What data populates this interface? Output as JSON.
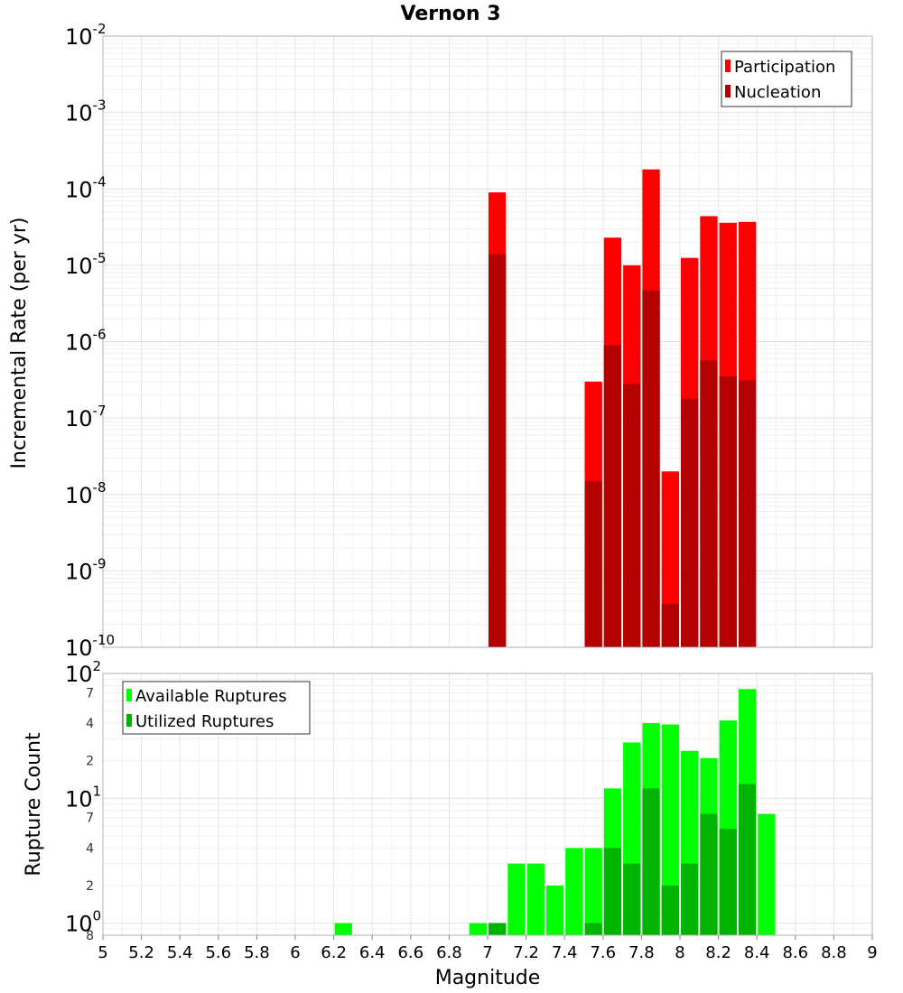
{
  "chart_data": [
    {
      "type": "bar",
      "scale": "log",
      "title": "Vernon 3",
      "xlabel": "Magnitude",
      "ylabel": "Incremental Rate (per yr)",
      "xlim": [
        5,
        9
      ],
      "ylim": [
        1e-10,
        0.01
      ],
      "y_tick_labels": [
        {
          "base": "10",
          "exp": "-10"
        },
        {
          "base": "10",
          "exp": "-9"
        },
        {
          "base": "10",
          "exp": "-8"
        },
        {
          "base": "10",
          "exp": "-7"
        },
        {
          "base": "10",
          "exp": "-6"
        },
        {
          "base": "10",
          "exp": "-5"
        },
        {
          "base": "10",
          "exp": "-4"
        },
        {
          "base": "10",
          "exp": "-3"
        },
        {
          "base": "10",
          "exp": "-2"
        }
      ],
      "bin_width": 0.1,
      "legend": "top-right",
      "series": [
        {
          "name": "Participation",
          "color": "#ff0000",
          "points": [
            {
              "x": 7.05,
              "y": 9e-05
            },
            {
              "x": 7.55,
              "y": 3e-07
            },
            {
              "x": 7.65,
              "y": 2.3e-05
            },
            {
              "x": 7.75,
              "y": 1e-05
            },
            {
              "x": 7.85,
              "y": 0.00018
            },
            {
              "x": 7.95,
              "y": 2e-08
            },
            {
              "x": 8.05,
              "y": 1.25e-05
            },
            {
              "x": 8.15,
              "y": 4.4e-05
            },
            {
              "x": 8.25,
              "y": 3.6e-05
            },
            {
              "x": 8.35,
              "y": 3.7e-05
            }
          ]
        },
        {
          "name": "Nucleation",
          "color": "#b30000",
          "points": [
            {
              "x": 7.05,
              "y": 1.4e-05
            },
            {
              "x": 7.55,
              "y": 1.5e-08
            },
            {
              "x": 7.65,
              "y": 9e-07
            },
            {
              "x": 7.75,
              "y": 2.8e-07
            },
            {
              "x": 7.85,
              "y": 4.7e-06
            },
            {
              "x": 7.95,
              "y": 3.7e-10
            },
            {
              "x": 8.05,
              "y": 1.8e-07
            },
            {
              "x": 8.15,
              "y": 5.7e-07
            },
            {
              "x": 8.25,
              "y": 3.5e-07
            },
            {
              "x": 8.35,
              "y": 3.1e-07
            }
          ]
        }
      ]
    },
    {
      "type": "bar",
      "scale": "log",
      "xlabel": "Magnitude",
      "ylabel": "Rupture Count",
      "xlim": [
        5,
        9
      ],
      "ylim": [
        0.8,
        100
      ],
      "x_ticks": [
        "5",
        "5.2",
        "5.4",
        "5.6",
        "5.8",
        "6",
        "6.2",
        "6.4",
        "6.6",
        "6.8",
        "7",
        "7.2",
        "7.4",
        "7.6",
        "7.8",
        "8",
        "8.2",
        "8.4",
        "8.6",
        "8.8",
        "9"
      ],
      "y_tick_labels": [
        {
          "base": "10",
          "exp": "0"
        },
        {
          "base": "10",
          "exp": "1"
        },
        {
          "base": "10",
          "exp": "2"
        }
      ],
      "y_minor_labels": [
        {
          "value": 0.8,
          "label": "8"
        },
        {
          "value": 2,
          "label": "2"
        },
        {
          "value": 4,
          "label": "4"
        },
        {
          "value": 7,
          "label": "7"
        },
        {
          "value": 20,
          "label": "2"
        },
        {
          "value": 40,
          "label": "4"
        },
        {
          "value": 70,
          "label": "7"
        }
      ],
      "bin_width": 0.1,
      "legend": "top-left",
      "series": [
        {
          "name": "Available Ruptures",
          "color": "#00ff00",
          "points": [
            {
              "x": 6.25,
              "y": 1
            },
            {
              "x": 6.95,
              "y": 1
            },
            {
              "x": 7.05,
              "y": 1
            },
            {
              "x": 7.15,
              "y": 3
            },
            {
              "x": 7.25,
              "y": 3
            },
            {
              "x": 7.35,
              "y": 2
            },
            {
              "x": 7.45,
              "y": 4
            },
            {
              "x": 7.55,
              "y": 4
            },
            {
              "x": 7.65,
              "y": 12
            },
            {
              "x": 7.75,
              "y": 28
            },
            {
              "x": 7.85,
              "y": 40
            },
            {
              "x": 7.95,
              "y": 39
            },
            {
              "x": 8.05,
              "y": 24
            },
            {
              "x": 8.15,
              "y": 21
            },
            {
              "x": 8.25,
              "y": 42
            },
            {
              "x": 8.35,
              "y": 75
            },
            {
              "x": 8.45,
              "y": 7.5
            }
          ]
        },
        {
          "name": "Utilized Ruptures",
          "color": "#00b300",
          "points": [
            {
              "x": 7.05,
              "y": 1
            },
            {
              "x": 7.55,
              "y": 1
            },
            {
              "x": 7.65,
              "y": 4
            },
            {
              "x": 7.75,
              "y": 3
            },
            {
              "x": 7.85,
              "y": 12
            },
            {
              "x": 7.95,
              "y": 2
            },
            {
              "x": 8.05,
              "y": 3
            },
            {
              "x": 8.15,
              "y": 7.5
            },
            {
              "x": 8.25,
              "y": 5.7
            },
            {
              "x": 8.35,
              "y": 13
            }
          ]
        }
      ]
    }
  ]
}
